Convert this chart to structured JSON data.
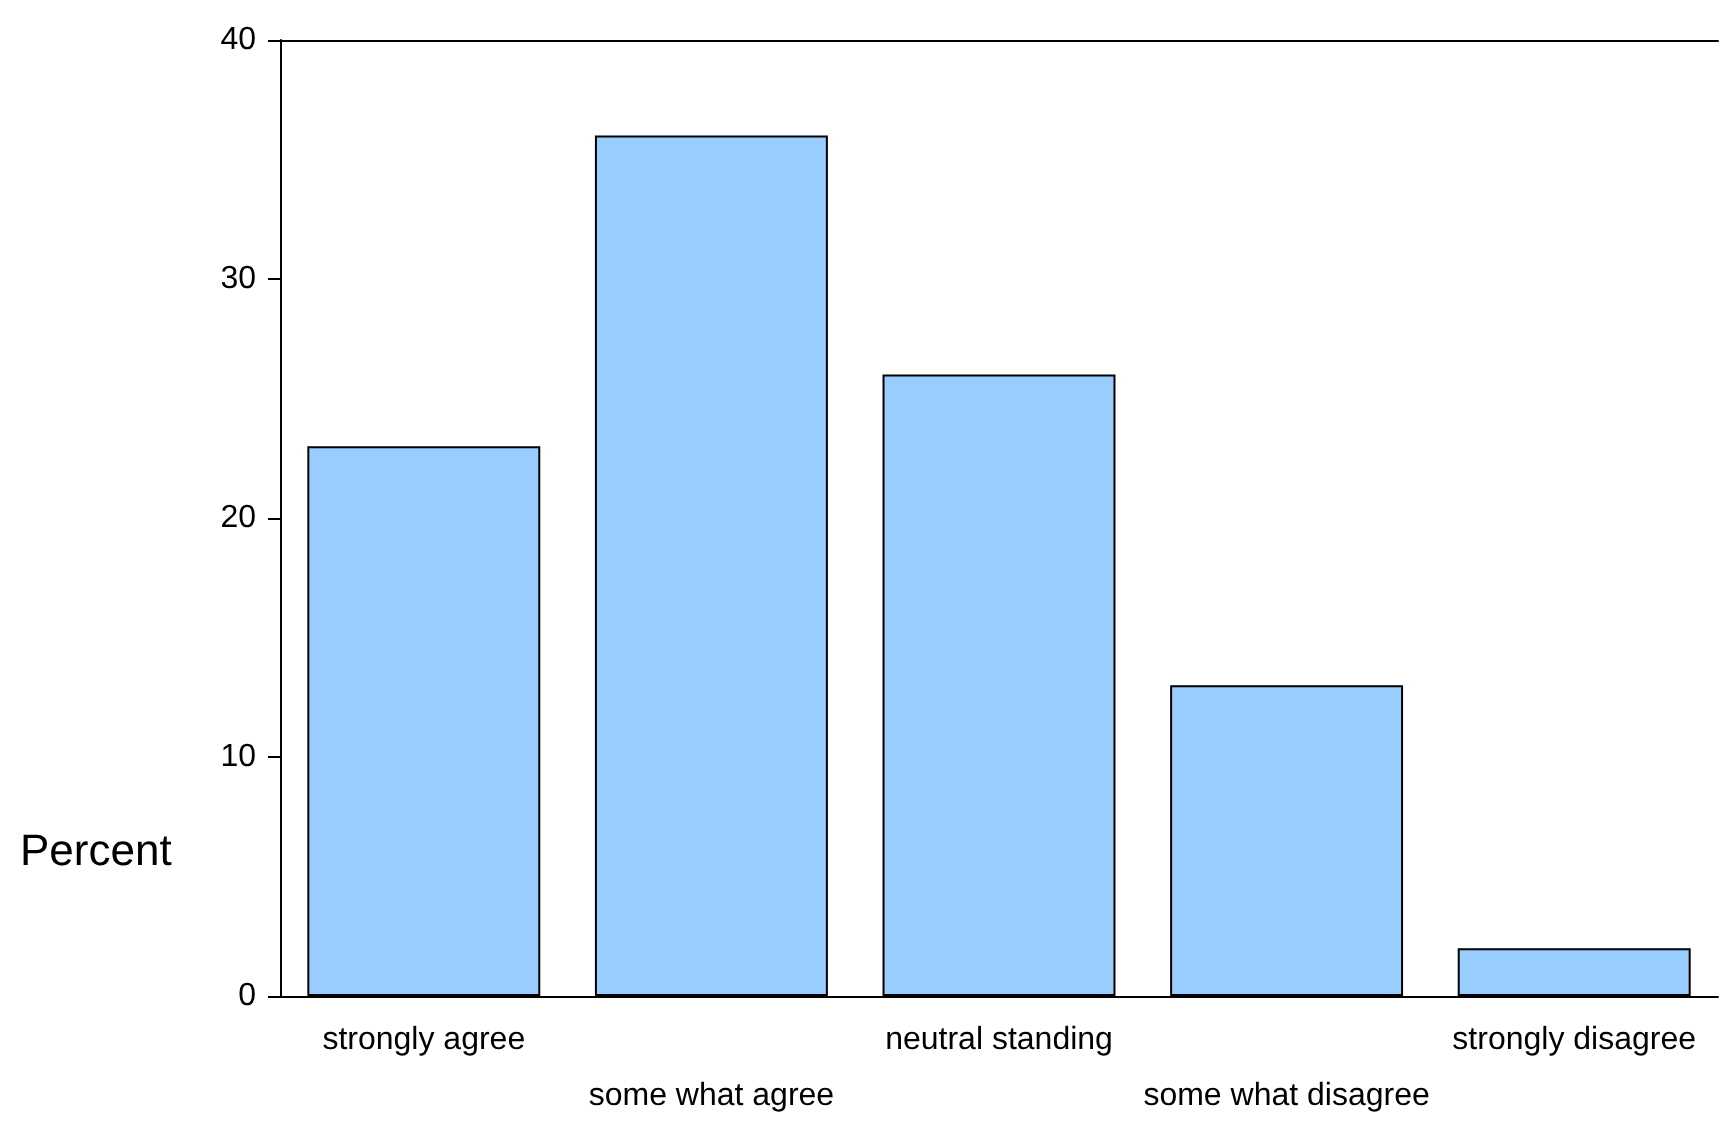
{
  "chart_data": {
    "type": "bar",
    "ylabel": "Percent",
    "categories": [
      "strongly agree",
      "some what agree",
      "neutral standing",
      "some what disagree",
      "strongly disagree"
    ],
    "values": [
      23,
      36,
      26,
      13,
      2
    ],
    "color": "#99ccff",
    "ylim": [
      0,
      40
    ],
    "yticks": [
      0,
      10,
      20,
      30,
      40
    ]
  }
}
